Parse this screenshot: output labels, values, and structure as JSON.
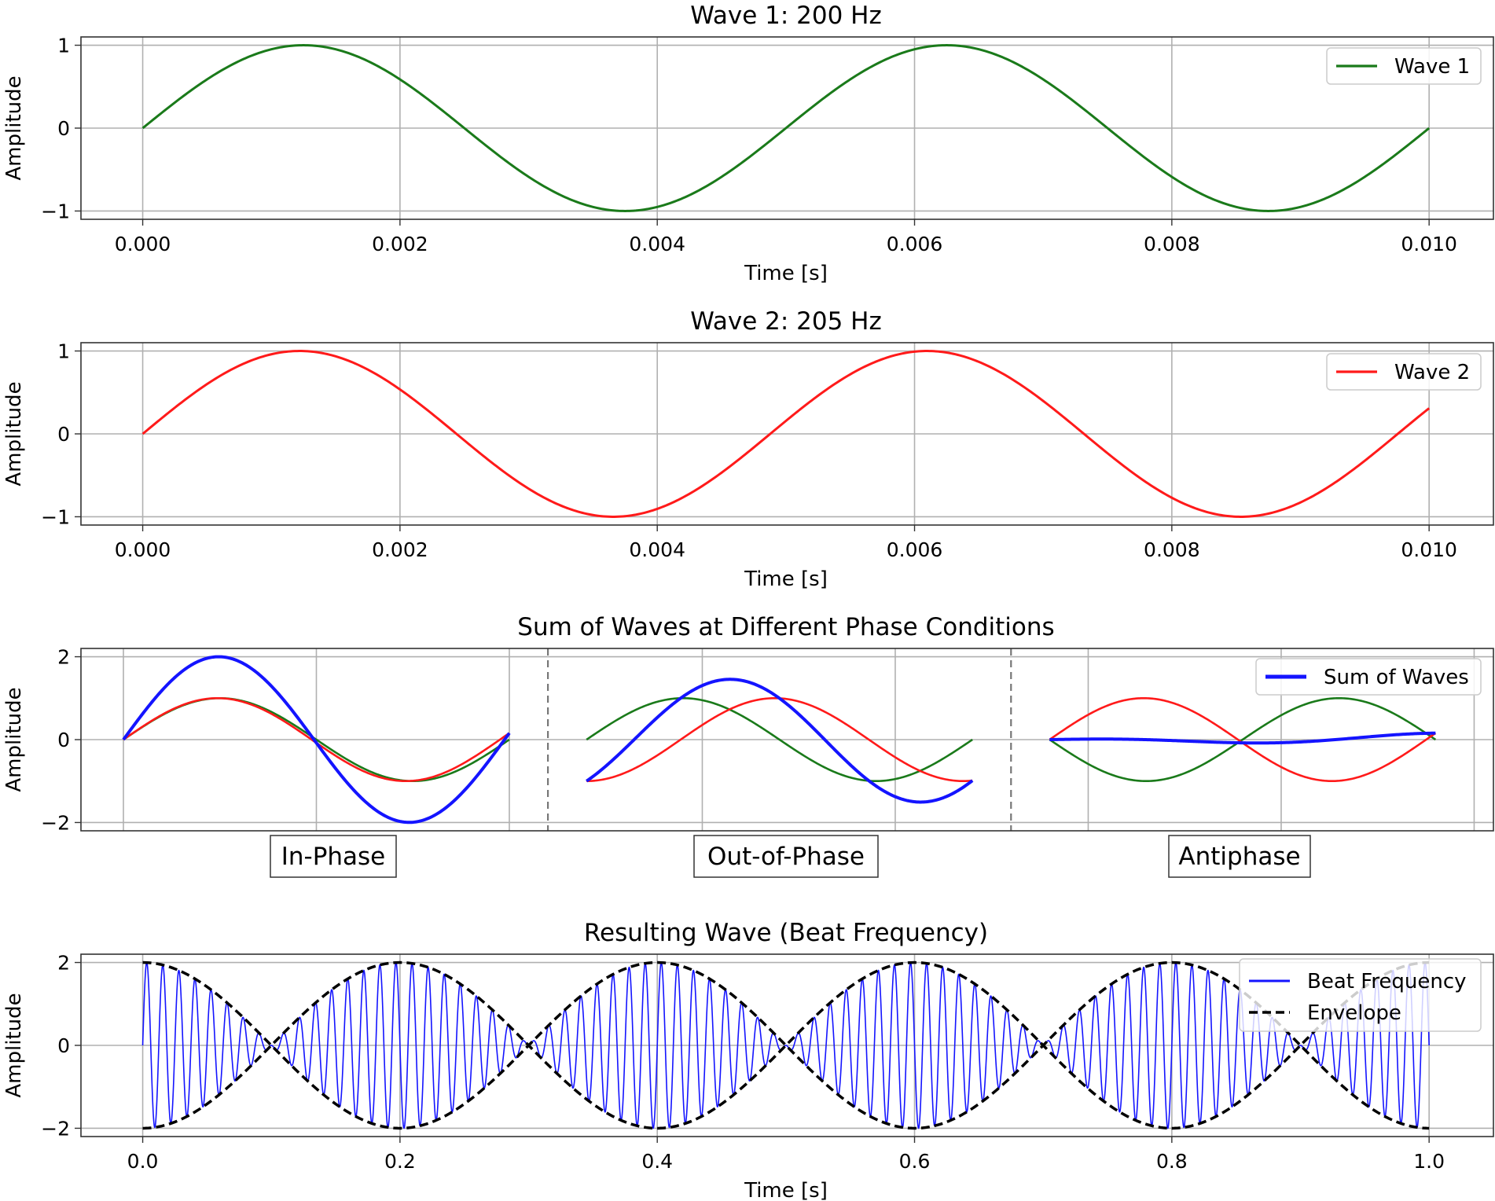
{
  "colors": {
    "wave1": "#1a7a1a",
    "wave2": "#ff1a1a",
    "sum": "#1414ff",
    "envelope": "#000000",
    "grid": "#b0b0b0",
    "axes": "#333333"
  },
  "chart_data": [
    {
      "type": "line",
      "title": "Wave 1: 200 Hz",
      "xlabel": "Time [s]",
      "ylabel": "Amplitude",
      "xlim": [
        -0.00048,
        0.0105
      ],
      "ylim": [
        -1.1,
        1.1
      ],
      "xticks": [
        0,
        0.002,
        0.004,
        0.006,
        0.008,
        0.01
      ],
      "xtick_labels": [
        "0.000",
        "0.002",
        "0.004",
        "0.006",
        "0.008",
        "0.010"
      ],
      "yticks": [
        -1,
        0,
        1
      ],
      "ytick_labels": [
        "−1",
        "0",
        "1"
      ],
      "grid": true,
      "legend_position": "upper right",
      "series": [
        {
          "name": "Wave 1",
          "function": "sin",
          "frequency_hz": 200,
          "amplitude": 1,
          "x_range": [
            0,
            0.01
          ],
          "color_key": "wave1"
        }
      ]
    },
    {
      "type": "line",
      "title": "Wave 2: 205 Hz",
      "xlabel": "Time [s]",
      "ylabel": "Amplitude",
      "xlim": [
        -0.00048,
        0.0105
      ],
      "ylim": [
        -1.1,
        1.1
      ],
      "xticks": [
        0,
        0.002,
        0.004,
        0.006,
        0.008,
        0.01
      ],
      "xtick_labels": [
        "0.000",
        "0.002",
        "0.004",
        "0.006",
        "0.008",
        "0.010"
      ],
      "yticks": [
        -1,
        0,
        1
      ],
      "ytick_labels": [
        "−1",
        "0",
        "1"
      ],
      "grid": true,
      "legend_position": "upper right",
      "series": [
        {
          "name": "Wave 2",
          "function": "sin",
          "frequency_hz": 205,
          "amplitude": 1,
          "x_range": [
            0,
            0.01
          ],
          "color_key": "wave2"
        }
      ]
    },
    {
      "type": "line",
      "title": "Sum of Waves at Different Phase Conditions",
      "xlabel": "",
      "ylabel": "Amplitude",
      "ylim": [
        -2.2,
        2.2
      ],
      "yticks": [
        -2,
        0,
        2
      ],
      "ytick_labels": [
        "−2",
        "0",
        "2"
      ],
      "grid": true,
      "legend_position": "upper right",
      "legend_entries": [
        "Sum of Waves"
      ],
      "segment_labels": [
        "In-Phase",
        "Out-of-Phase",
        "Antiphase"
      ],
      "segments": [
        {
          "label": "In-Phase",
          "wave1_phase": 0,
          "wave2_phase": 0,
          "sum_amplitude_peak": 2
        },
        {
          "label": "Out-of-Phase",
          "wave1_phase": 0,
          "wave2_phase": -1.5708,
          "sum_amplitude_peak": 1.41
        },
        {
          "label": "Antiphase",
          "wave1_phase": 3.1416,
          "wave2_phase": 0,
          "sum_amplitude_peak": 0.1
        }
      ]
    },
    {
      "type": "line",
      "title": "Resulting Wave (Beat Frequency)",
      "xlabel": "Time [s]",
      "ylabel": "Amplitude",
      "xlim": [
        -0.048,
        1.05
      ],
      "ylim": [
        -2.2,
        2.2
      ],
      "xticks": [
        0,
        0.2,
        0.4,
        0.6,
        0.8,
        1.0
      ],
      "xtick_labels": [
        "0.0",
        "0.2",
        "0.4",
        "0.6",
        "0.8",
        "1.0"
      ],
      "yticks": [
        -2,
        0,
        2
      ],
      "ytick_labels": [
        "−2",
        "0",
        "2"
      ],
      "grid": true,
      "legend_position": "upper right",
      "beat_frequency_hz": 5,
      "series": [
        {
          "name": "Beat Frequency",
          "function": "sin200+sin205",
          "x_range": [
            0,
            1
          ],
          "color_key": "sum"
        },
        {
          "name": "Envelope",
          "function": "2cos(pi*5t)",
          "style": "dashed",
          "x_range": [
            0,
            1
          ],
          "color_key": "envelope"
        }
      ]
    }
  ]
}
